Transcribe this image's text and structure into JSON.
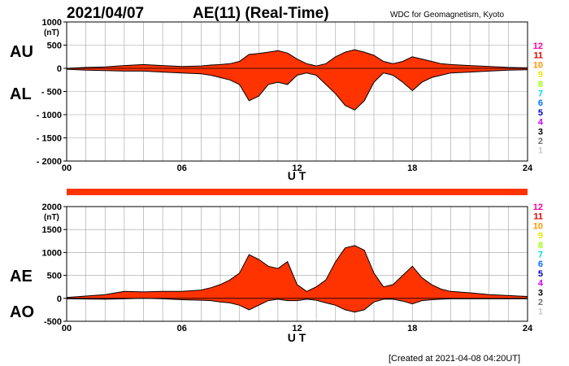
{
  "header": {
    "date": "2021/04/07",
    "title": "AE(11) (Real-Time)",
    "source": "WDC for Geomagnetism, Kyoto"
  },
  "footer": {
    "created": "[Created at 2021-04-08 04:20UT]"
  },
  "colors": {
    "fill": "#ff3300",
    "outline": "#000000",
    "grid": "#a0a0a0",
    "bar": "#ff3300"
  },
  "station_legend": [
    {
      "label": "12",
      "color": "#ff00a0"
    },
    {
      "label": "11",
      "color": "#e00000"
    },
    {
      "label": "10",
      "color": "#ff9900"
    },
    {
      "label": "9",
      "color": "#e8e800"
    },
    {
      "label": "8",
      "color": "#a0ff00"
    },
    {
      "label": "7",
      "color": "#00e0e0"
    },
    {
      "label": "6",
      "color": "#0070ff"
    },
    {
      "label": "5",
      "color": "#0000c0"
    },
    {
      "label": "4",
      "color": "#d000ff"
    },
    {
      "label": "3",
      "color": "#000000"
    },
    {
      "label": "2",
      "color": "#707070"
    },
    {
      "label": "1",
      "color": "#c8c8c8"
    }
  ],
  "chart_data": [
    {
      "type": "area",
      "panel": "AU/AL",
      "upper_label": "AU",
      "lower_label": "AL",
      "unit": "(nT)",
      "xlabel": "U T",
      "xlim": [
        0,
        24
      ],
      "ylim": [
        -2000,
        1000
      ],
      "xticks": [
        "00",
        "06",
        "12",
        "18",
        "24"
      ],
      "yticks": [
        "1000",
        "500",
        "0",
        "- 500",
        "- 1000",
        "- 1500",
        "- 2000"
      ],
      "ytick_values": [
        1000,
        500,
        0,
        -500,
        -1000,
        -1500,
        -2000
      ],
      "grid": true,
      "x": [
        0,
        1,
        2,
        3,
        4,
        5,
        6,
        7,
        7.5,
        8,
        8.5,
        9,
        9.5,
        10,
        10.5,
        11,
        11.5,
        12,
        12.5,
        13,
        13.5,
        14,
        14.5,
        15,
        15.5,
        16,
        16.5,
        17,
        17.5,
        18,
        18.5,
        19,
        19.5,
        20,
        21,
        22,
        23,
        24
      ],
      "series": [
        {
          "name": "AU",
          "values": [
            0,
            20,
            30,
            60,
            80,
            60,
            40,
            50,
            70,
            80,
            100,
            150,
            300,
            320,
            350,
            380,
            330,
            200,
            100,
            50,
            100,
            250,
            350,
            400,
            350,
            280,
            150,
            100,
            150,
            250,
            200,
            150,
            100,
            80,
            60,
            40,
            20,
            10
          ]
        },
        {
          "name": "AL",
          "values": [
            -20,
            -40,
            -50,
            -60,
            -60,
            -80,
            -100,
            -120,
            -150,
            -200,
            -250,
            -350,
            -700,
            -600,
            -350,
            -300,
            -350,
            -150,
            -100,
            -150,
            -350,
            -550,
            -800,
            -900,
            -700,
            -300,
            -100,
            -150,
            -300,
            -480,
            -300,
            -200,
            -150,
            -100,
            -80,
            -60,
            -40,
            -30
          ]
        }
      ]
    },
    {
      "type": "area",
      "panel": "AE/AO",
      "upper_label": "AE",
      "lower_label": "AO",
      "unit": "(nT)",
      "xlabel": "U T",
      "xlim": [
        0,
        24
      ],
      "ylim": [
        -500,
        2000
      ],
      "xticks": [
        "00",
        "06",
        "12",
        "18",
        "24"
      ],
      "yticks": [
        "2000",
        "1500",
        "1000",
        "500",
        "0",
        "-500"
      ],
      "ytick_values": [
        2000,
        1500,
        1000,
        500,
        0,
        -500
      ],
      "grid": true,
      "x": [
        0,
        1,
        2,
        3,
        4,
        5,
        6,
        7,
        7.5,
        8,
        8.5,
        9,
        9.5,
        10,
        10.5,
        11,
        11.5,
        12,
        12.5,
        13,
        13.5,
        14,
        14.5,
        15,
        15.5,
        16,
        16.5,
        17,
        17.5,
        18,
        18.5,
        19,
        19.5,
        20,
        21,
        22,
        23,
        24
      ],
      "series": [
        {
          "name": "AE",
          "values": [
            20,
            50,
            80,
            150,
            140,
            150,
            150,
            180,
            230,
            300,
            400,
            550,
            950,
            850,
            700,
            650,
            800,
            300,
            150,
            250,
            400,
            800,
            1100,
            1150,
            1050,
            550,
            250,
            300,
            500,
            700,
            450,
            300,
            200,
            150,
            120,
            80,
            60,
            40
          ]
        },
        {
          "name": "AO",
          "values": [
            -10,
            -15,
            -20,
            -10,
            0,
            -10,
            -30,
            -40,
            -50,
            -80,
            -100,
            -150,
            -250,
            -150,
            -50,
            -20,
            -50,
            -50,
            -20,
            -40,
            -100,
            -150,
            -250,
            -300,
            -250,
            -80,
            -20,
            -20,
            -60,
            -120,
            -50,
            -30,
            -20,
            -10,
            -10,
            -10,
            -10,
            -10
          ]
        }
      ]
    }
  ]
}
